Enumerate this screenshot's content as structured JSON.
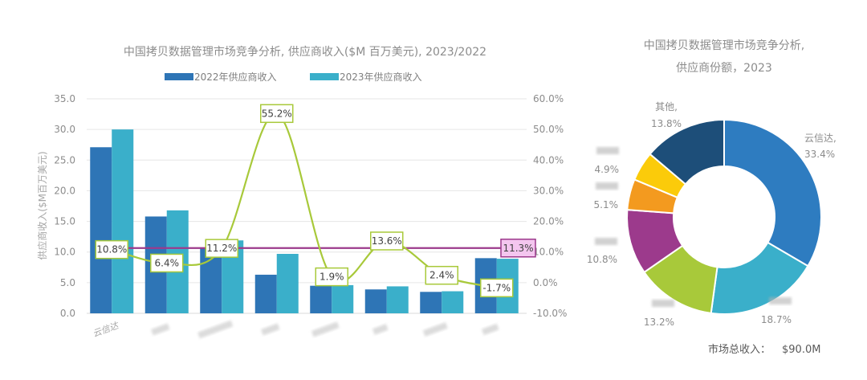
{
  "chart_data": [
    {
      "type": "bar",
      "title": "中国拷贝数据管理市场竞争分析, 供应商收入($M 百万美元), 2023/2022",
      "ylabel": "供应商收入($M百万美元)",
      "ylim": [
        0,
        35
      ],
      "y_ticks": [
        "0.0",
        "5.0",
        "10.0",
        "15.0",
        "20.0",
        "25.0",
        "30.0",
        "35.0"
      ],
      "y2lim": [
        -10,
        60
      ],
      "y2_ticks": [
        "-10.0%",
        "0.0%",
        "10.0%",
        "20.0%",
        "30.0%",
        "40.0%",
        "50.0%",
        "60.0%"
      ],
      "categories": [
        "云信达",
        "",
        "",
        "",
        "",
        "",
        "",
        ""
      ],
      "series": [
        {
          "name": "2022年供应商收入",
          "values": [
            27.1,
            15.8,
            10.7,
            6.3,
            4.5,
            3.9,
            3.5,
            9.0
          ],
          "color": "#2e75b6"
        },
        {
          "name": "2023年供应商收入",
          "values": [
            30.0,
            16.8,
            11.9,
            9.7,
            4.6,
            4.4,
            3.6,
            8.9
          ],
          "color": "#3aafca"
        }
      ],
      "growth": {
        "values": [
          10.8,
          6.4,
          11.2,
          55.2,
          1.9,
          13.6,
          2.4,
          -1.7
        ],
        "labels": [
          "10.8%",
          "6.4%",
          "11.2%",
          "55.2%",
          "1.9%",
          "13.6%",
          "2.4%",
          "-1.7%"
        ],
        "color": "#a8c93a"
      },
      "reference": {
        "value": 11.3,
        "label": "11.3%",
        "color": "#9c3a8c"
      },
      "legend": "top",
      "grid": true
    },
    {
      "type": "pie",
      "title_lines": [
        "中国拷贝数据管理市场竞争分析,",
        "供应商份额，2023"
      ],
      "slices": [
        {
          "label": "云信达,",
          "pct_label": "33.4%",
          "value": 33.4,
          "color": "#2e7cc0",
          "blurred": false
        },
        {
          "label": "",
          "pct_label": "18.7%",
          "value": 18.7,
          "color": "#3aafca",
          "blurred": true
        },
        {
          "label": "",
          "pct_label": "13.2%",
          "value": 13.2,
          "color": "#a8c93a",
          "blurred": true
        },
        {
          "label": "",
          "pct_label": "10.8%",
          "value": 10.8,
          "color": "#9c3a8c",
          "blurred": true
        },
        {
          "label": "",
          "pct_label": "5.1%",
          "value": 5.1,
          "color": "#f39a1f",
          "blurred": true
        },
        {
          "label": "",
          "pct_label": "4.9%",
          "value": 4.9,
          "color": "#fbcb0a",
          "blurred": true
        },
        {
          "label": "其他,",
          "pct_label": "13.8%",
          "value": 13.8,
          "color": "#1d4e79",
          "blurred": false
        }
      ],
      "total_label": "市场总收入：",
      "total_value": "$90.0M"
    }
  ]
}
